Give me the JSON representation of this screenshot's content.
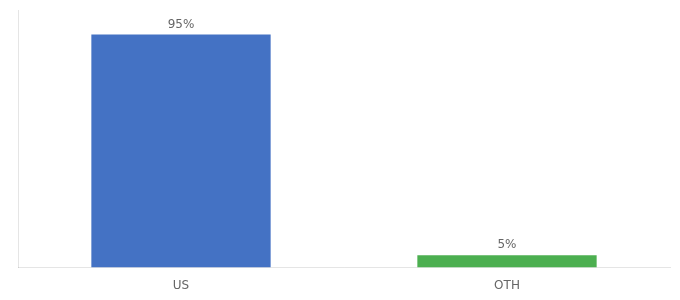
{
  "chart_data": {
    "type": "bar",
    "categories": [
      "US",
      "OTH"
    ],
    "values": [
      95,
      5
    ],
    "value_labels": [
      "95%",
      "5%"
    ],
    "colors": [
      "#4472c4",
      "#4caf50"
    ],
    "ylim": [
      0,
      105
    ],
    "data_labels": true,
    "tick_labels": "x",
    "grid": false
  }
}
